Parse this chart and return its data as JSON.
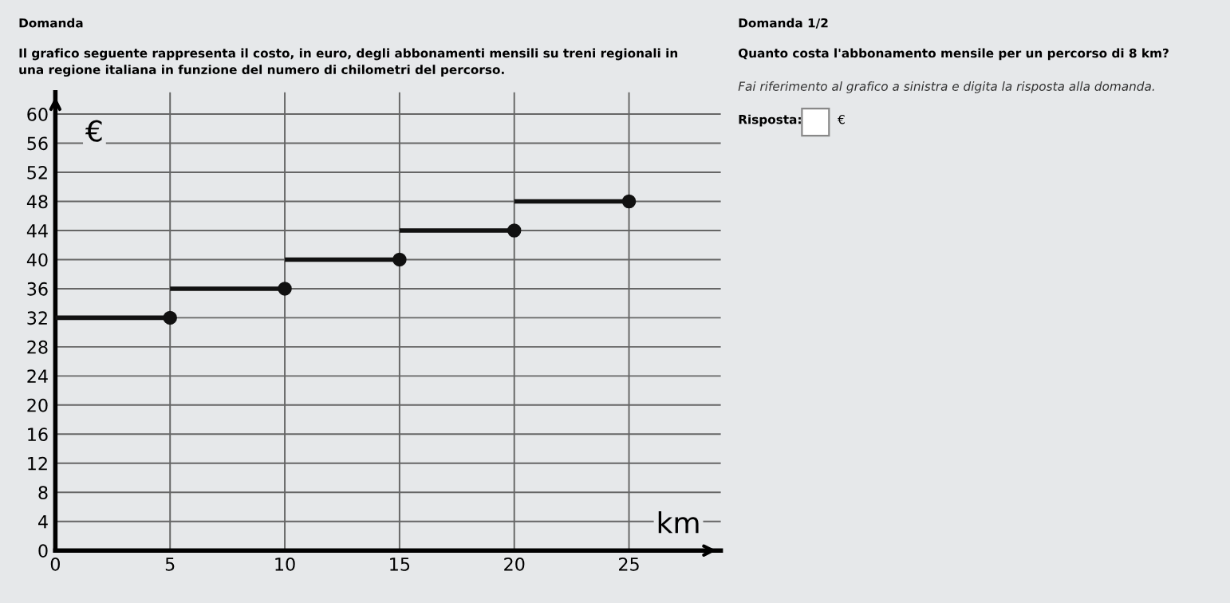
{
  "chart_data": {
    "type": "step",
    "title": "Domanda",
    "subtitle": "Il grafico seguente rappresenta il costo, in euro, degli abbonamenti mensili su treni regionali in una regione italiana in funzione del numero di chilometri del percorso.",
    "xlabel": "km",
    "ylabel": "€",
    "x": [
      0,
      5,
      10,
      15,
      20,
      25
    ],
    "series": [
      {
        "color": "#111111",
        "values": [
          32,
          36,
          40,
          44,
          48,
          48
        ]
      },
      {
        "type": "scatter",
        "marker": "circle",
        "color": "#111111",
        "x": [
          5,
          10,
          15,
          20,
          25
        ],
        "values": [
          32,
          36,
          40,
          44,
          48
        ]
      }
    ],
    "xlim": [
      0,
      29
    ],
    "ylim": [
      0,
      63
    ],
    "xticks": [
      0,
      5,
      10,
      15,
      20,
      25
    ],
    "yticks": [
      0,
      4,
      8,
      12,
      16,
      20,
      24,
      28,
      32,
      36,
      40,
      44,
      48,
      52,
      56,
      60
    ],
    "grid": true,
    "annotations": [
      "Domanda 1/2",
      "Quanto costa l'abbonamento mensile per un percorso di 8 km?",
      "Fai riferimento al grafico a sinistra e digita la risposta alla domanda.",
      "Risposta:",
      "€"
    ]
  }
}
